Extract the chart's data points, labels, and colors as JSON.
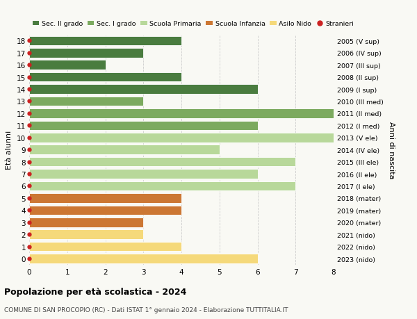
{
  "ages": [
    18,
    17,
    16,
    15,
    14,
    13,
    12,
    11,
    10,
    9,
    8,
    7,
    6,
    5,
    4,
    3,
    2,
    1,
    0
  ],
  "right_labels": [
    "2005 (V sup)",
    "2006 (IV sup)",
    "2007 (III sup)",
    "2008 (II sup)",
    "2009 (I sup)",
    "2010 (III med)",
    "2011 (II med)",
    "2012 (I med)",
    "2013 (V ele)",
    "2014 (IV ele)",
    "2015 (III ele)",
    "2016 (II ele)",
    "2017 (I ele)",
    "2018 (mater)",
    "2019 (mater)",
    "2020 (mater)",
    "2021 (nido)",
    "2022 (nido)",
    "2023 (nido)"
  ],
  "values": [
    4,
    3,
    2,
    4,
    6,
    3,
    8,
    6,
    8,
    5,
    7,
    6,
    7,
    4,
    4,
    3,
    3,
    4,
    6
  ],
  "bar_colors": [
    "#4a7c3f",
    "#4a7c3f",
    "#4a7c3f",
    "#4a7c3f",
    "#4a7c3f",
    "#7caa5f",
    "#7caa5f",
    "#7caa5f",
    "#b8d89a",
    "#b8d89a",
    "#b8d89a",
    "#b8d89a",
    "#b8d89a",
    "#cc7733",
    "#cc7733",
    "#cc7733",
    "#f5d97a",
    "#f5d97a",
    "#f5d97a"
  ],
  "legend_labels": [
    "Sec. II grado",
    "Sec. I grado",
    "Scuola Primaria",
    "Scuola Infanzia",
    "Asilo Nido",
    "Stranieri"
  ],
  "legend_colors": [
    "#4a7c3f",
    "#7caa5f",
    "#b8d89a",
    "#cc7733",
    "#f5d97a",
    "#cc2222"
  ],
  "ylabel_left": "Età alunni",
  "ylabel_right": "Anni di nascita",
  "title": "Popolazione per età scolastica - 2024",
  "subtitle": "COMUNE DI SAN PROCOPIO (RC) - Dati ISTAT 1° gennaio 2024 - Elaborazione TUTTITALIA.IT",
  "xlim": [
    0,
    8
  ],
  "background_color": "#f9f9f4",
  "grid_color": "#cccccc",
  "stranieri_color": "#cc2222",
  "bar_height": 0.78
}
